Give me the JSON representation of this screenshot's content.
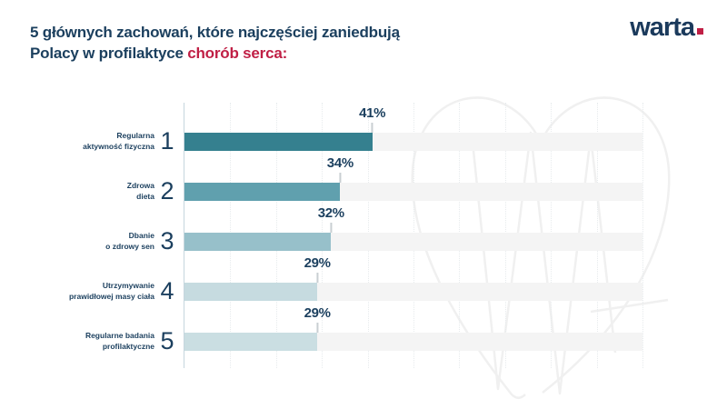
{
  "header": {
    "title_line1": "5 głównych zachowań, które najczęściej zaniedbują",
    "title_line2_prefix": "Polacy w profilaktyce ",
    "title_line2_highlight": "chorób serca:",
    "logo_text": "warta"
  },
  "colors": {
    "navy": "#1b3f5e",
    "crimson": "#c01f45",
    "track": "#f4f4f4",
    "axis": "#c6d6de",
    "gridline": "#e7ebed",
    "tick": "#c9ced2",
    "watermark": "#f0f0f0",
    "bar_colors": [
      "#35808f",
      "#60a0ae",
      "#97c0ca",
      "#c6dbe0",
      "#cadee2"
    ]
  },
  "chart_data": {
    "type": "bar",
    "orientation": "horizontal",
    "title": "5 głównych zachowań, które najczęściej zaniedbują Polacy w profilaktyce chorób serca:",
    "categories": [
      "Regularna aktywność fizyczna",
      "Zdrowa dieta",
      "Dbanie o zdrowy sen",
      "Utrzymywanie prawidłowej masy ciała",
      "Regularne badania profilaktyczne"
    ],
    "values": [
      41,
      34,
      32,
      29,
      29
    ],
    "value_labels": [
      "41%",
      "34%",
      "32%",
      "29%",
      "29%"
    ],
    "rank_labels": [
      "1",
      "2",
      "3",
      "4",
      "5"
    ],
    "xlim": [
      0,
      100
    ],
    "grid": true,
    "gridline_interval_percent": 10,
    "legend": false
  },
  "rows": [
    {
      "rank": "1",
      "label_line1": "Regularna",
      "label_line2": "aktywność fizyczna",
      "value_label": "41%"
    },
    {
      "rank": "2",
      "label_line1": "Zdrowa",
      "label_line2": "dieta",
      "value_label": "34%"
    },
    {
      "rank": "3",
      "label_line1": "Dbanie",
      "label_line2": "o zdrowy sen",
      "value_label": "32%"
    },
    {
      "rank": "4",
      "label_line1": "Utrzymywanie",
      "label_line2": "prawidłowej masy ciała",
      "value_label": "29%"
    },
    {
      "rank": "5",
      "label_line1": "Regularne badania",
      "label_line2": "profilaktyczne",
      "value_label": "29%"
    }
  ]
}
